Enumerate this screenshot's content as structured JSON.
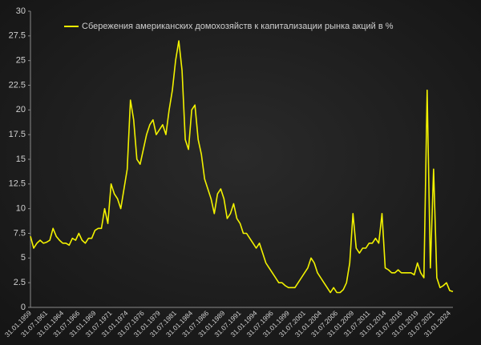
{
  "chart_data": {
    "type": "line",
    "categories": [
      "31.01.1959",
      null,
      null,
      null,
      null,
      "31.07.1961",
      null,
      null,
      null,
      null,
      "31.01.1964",
      null,
      null,
      null,
      null,
      "31.07.1966",
      null,
      null,
      null,
      null,
      "31.01.1969",
      null,
      null,
      null,
      null,
      "31.07.1971",
      null,
      null,
      null,
      null,
      "31.01.1974",
      null,
      null,
      null,
      null,
      "31.07.1976",
      null,
      null,
      null,
      null,
      "31.01.1979",
      null,
      null,
      null,
      null,
      "31.07.1981",
      null,
      null,
      null,
      null,
      "31.01.1984",
      null,
      null,
      null,
      null,
      "31.07.1986",
      null,
      null,
      null,
      null,
      "31.01.1989",
      null,
      null,
      null,
      null,
      "31.07.1991",
      null,
      null,
      null,
      null,
      "31.01.1994",
      null,
      null,
      null,
      null,
      "31.07.1996",
      null,
      null,
      null,
      null,
      "31.01.1999",
      null,
      null,
      null,
      null,
      "31.07.2001",
      null,
      null,
      null,
      null,
      "31.01.2004",
      null,
      null,
      null,
      null,
      "31.07.2006",
      null,
      null,
      null,
      null,
      "31.01.2009",
      null,
      null,
      null,
      null,
      "31.07.2011",
      null,
      null,
      null,
      null,
      "31.01.2014",
      null,
      null,
      null,
      null,
      "31.07.2016",
      null,
      null,
      null,
      null,
      "31.01.2019",
      null,
      null,
      null,
      null,
      "31.07.2021",
      null,
      null,
      null,
      null,
      "31.01.2024",
      null
    ],
    "series": [
      {
        "name": "Сбережения американских домохозяйств к капитализации рынка акций в %",
        "color": "#f2f200",
        "values": [
          7.2,
          6.0,
          6.5,
          6.8,
          6.5,
          6.6,
          6.8,
          8.0,
          7.2,
          6.8,
          6.5,
          6.5,
          6.3,
          7.0,
          6.8,
          7.5,
          6.8,
          6.5,
          7.0,
          7.0,
          7.8,
          8.0,
          8.0,
          10.0,
          8.5,
          12.5,
          11.5,
          11.0,
          10.0,
          12.0,
          14.0,
          21.0,
          19.0,
          15.0,
          14.5,
          16.0,
          17.5,
          18.5,
          19.0,
          17.5,
          18.0,
          18.5,
          17.5,
          20.0,
          22.0,
          25.0,
          27.0,
          24.0,
          17.0,
          16.0,
          20.0,
          20.5,
          17.0,
          15.5,
          13.0,
          12.0,
          11.0,
          9.5,
          11.5,
          12.0,
          11.0,
          9.0,
          9.5,
          10.5,
          9.0,
          8.5,
          7.5,
          7.5,
          7.0,
          6.5,
          6.0,
          6.5,
          5.5,
          4.5,
          4.0,
          3.5,
          3.0,
          2.5,
          2.5,
          2.2,
          2.0,
          2.0,
          2.0,
          2.5,
          3.0,
          3.5,
          4.0,
          5.0,
          4.5,
          3.5,
          3.0,
          2.5,
          2.0,
          1.5,
          2.0,
          1.5,
          1.5,
          1.8,
          2.5,
          4.5,
          9.5,
          6.0,
          5.5,
          6.0,
          6.0,
          6.5,
          6.5,
          7.0,
          6.5,
          9.5,
          4.0,
          3.8,
          3.5,
          3.5,
          3.8,
          3.5,
          3.5,
          3.5,
          3.5,
          3.3,
          4.5,
          3.5,
          3.0,
          22.0,
          4.0,
          14.0,
          3.0,
          2.0,
          2.2,
          2.5,
          1.7,
          1.6
        ]
      }
    ],
    "ylim": [
      0,
      30
    ],
    "yticks": [
      0,
      2.5,
      5,
      7.5,
      10,
      12.5,
      15,
      17.5,
      20,
      22.5,
      25,
      27.5,
      30
    ],
    "grid": false,
    "legend": "top"
  }
}
